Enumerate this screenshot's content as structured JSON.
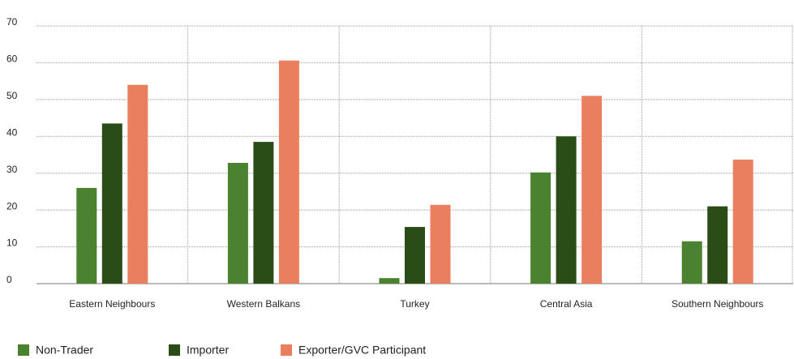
{
  "chart_data": {
    "type": "bar",
    "categories": [
      "Eastern Neighbours",
      "Western Balkans",
      "Turkey",
      "Central Asia",
      "Southern Neighbours"
    ],
    "series": [
      {
        "name": "Non-Trader",
        "color": "#4b8230",
        "values": [
          26,
          32.8,
          1.5,
          30.2,
          11.5
        ]
      },
      {
        "name": "Importer",
        "color": "#2a4d17",
        "values": [
          43.5,
          38.5,
          15.4,
          40,
          21
        ]
      },
      {
        "name": "Exporter/GVC Participant",
        "color": "#ea7f60",
        "values": [
          54,
          60.6,
          21.4,
          51,
          33.7
        ]
      }
    ],
    "ylim": [
      0,
      70
    ],
    "yticks": [
      0,
      10,
      20,
      30,
      40,
      50,
      60,
      70
    ],
    "grid": true,
    "legend": "bottom-left"
  }
}
